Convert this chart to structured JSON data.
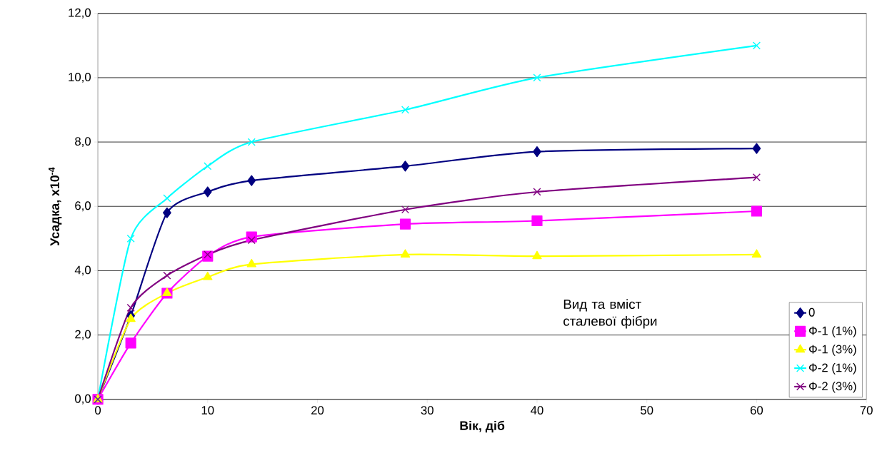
{
  "chart_data": {
    "type": "line",
    "xlabel": "Вік, діб",
    "ylabel": "Усадка, x10$^{-4}$",
    "legend_title": "Вид та вміст сталевої фібри",
    "x": [
      0,
      3,
      6.3,
      10,
      14,
      28,
      40,
      60
    ],
    "xlim": [
      0,
      70
    ],
    "xticks": [
      0,
      10,
      20,
      30,
      40,
      50,
      60,
      70
    ],
    "ylim": [
      0,
      12
    ],
    "yticks": [
      {
        "value": 0,
        "label": "0,0"
      },
      {
        "value": 2,
        "label": "2,0"
      },
      {
        "value": 4,
        "label": "4,0"
      },
      {
        "value": 6,
        "label": "6,0"
      },
      {
        "value": 8,
        "label": "8,0"
      },
      {
        "value": 10,
        "label": "10,0"
      },
      {
        "value": 12,
        "label": "12,0"
      }
    ],
    "grid": "y",
    "legend": "bottom right",
    "series": [
      {
        "name": "0",
        "color": "#000080",
        "marker": "diamond",
        "values": [
          0,
          2.6,
          5.8,
          6.45,
          6.8,
          7.25,
          7.7,
          7.8
        ]
      },
      {
        "name": "Ф-1 (1%)",
        "color": "#ff00ff",
        "marker": "square",
        "values": [
          0,
          1.75,
          3.3,
          4.45,
          5.05,
          5.45,
          5.55,
          5.85
        ]
      },
      {
        "name": "Ф-1 (3%)",
        "color": "#ffff00",
        "marker": "triangle",
        "values": [
          0,
          2.5,
          3.3,
          3.8,
          4.2,
          4.5,
          4.45,
          4.5
        ]
      },
      {
        "name": "Ф-2 (1%)",
        "color": "#00ffff",
        "marker": "cross",
        "values": [
          0,
          5.0,
          6.25,
          7.25,
          8.0,
          9.0,
          10.0,
          11.0
        ]
      },
      {
        "name": "Ф-2 (3%)",
        "color": "#800080",
        "marker": "cross",
        "values": [
          0,
          2.85,
          3.85,
          4.5,
          4.95,
          5.9,
          6.45,
          6.9
        ]
      }
    ]
  }
}
